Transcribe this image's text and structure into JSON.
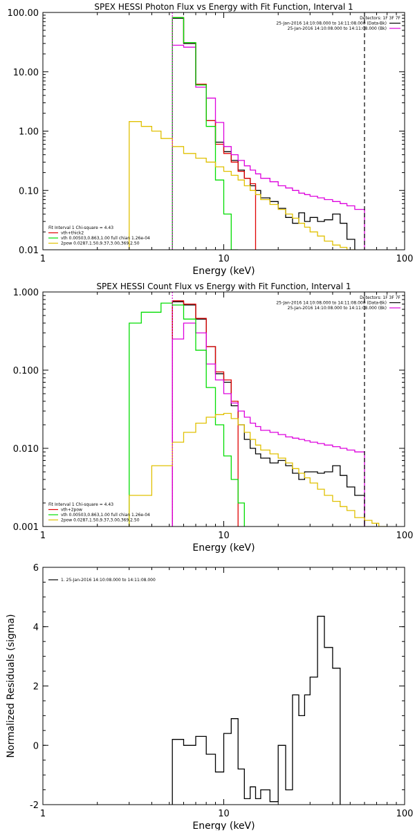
{
  "colors": {
    "black": "#000000",
    "red": "#e00000",
    "green": "#00dd00",
    "magenta": "#dd00dd",
    "yellow": "#e0c000",
    "axis": "#000000"
  },
  "chart_data": [
    {
      "type": "line",
      "title": "SPEX HESSI Photon Flux vs Energy with Fit Function, Interval 1",
      "xlabel": "Energy (keV)",
      "ylabel": "",
      "xscale": "log",
      "yscale": "log",
      "xlim": [
        1,
        100
      ],
      "ylim": [
        0.01,
        100
      ],
      "xticks": [
        {
          "value": 1,
          "label": "1"
        },
        {
          "value": 10,
          "label": "10"
        },
        {
          "value": 100,
          "label": "100"
        }
      ],
      "yticks": [
        {
          "value": 0.01,
          "label": "0.01"
        },
        {
          "value": 0.1,
          "label": "0.10"
        },
        {
          "value": 1,
          "label": "1.00"
        },
        {
          "value": 10,
          "label": "10.00"
        },
        {
          "value": 100,
          "label": "100.00"
        }
      ],
      "legend_topright": [
        {
          "text": "Detectors: 1F 3F 7F",
          "color": "",
          "line": false
        },
        {
          "text": "25-Jan-2016 14:10:08.000 to 14:11:08.000 (Data-Bk)",
          "color": "#000000",
          "line": true
        },
        {
          "text": "25-Jan-2016 14:10:08.000 to 14:11:08.000 (Bk)",
          "color": "#dd00dd",
          "line": true
        }
      ],
      "legend_bottomleft": [
        {
          "text": "Fit Interval  1   Chi-square = 4.43",
          "color": "",
          "line": false
        },
        {
          "text": "vth+thick2",
          "color": "#e00000",
          "line": true
        },
        {
          "text": "vth 0.00503,0.863,1.00  full chian 1.26e-04",
          "color": "#00dd00",
          "line": true
        },
        {
          "text": "2pow 0.0287,1.50,9.37,3.00,369,2.50",
          "color": "#e0c000",
          "line": true
        }
      ],
      "vlines": [
        {
          "x": 5.2,
          "color": "#dd00dd",
          "style": "dotted"
        },
        {
          "x": 60,
          "color": "#000000",
          "style": "dashed"
        }
      ],
      "edges": [
        3,
        3.5,
        4,
        4.5,
        5.2,
        6,
        7,
        8,
        9,
        10,
        11,
        12,
        13,
        14,
        15,
        16,
        18,
        20,
        22,
        24,
        26,
        28,
        30,
        33,
        36,
        40,
        44,
        48,
        53,
        60
      ],
      "series": [
        {
          "color": "#000000",
          "ymin": 0.01,
          "start": 4,
          "values": [
            80,
            30,
            6,
            1.5,
            0.65,
            0.45,
            0.32,
            0.22,
            0.16,
            0.12,
            0.1,
            0.075,
            0.065,
            0.05,
            0.035,
            0.028,
            0.042,
            0.03,
            0.035,
            0.03,
            0.032,
            0.04,
            0.028,
            0.015
          ]
        },
        {
          "color": "#e00000",
          "ymin": 0.01,
          "start": 4,
          "values": [
            82,
            31,
            6.2,
            1.5,
            0.6,
            0.42,
            0.3,
            0.21,
            0.16,
            0.13
          ]
        },
        {
          "color": "#dd00dd",
          "ymin": 0.01,
          "start": 4,
          "values": [
            28,
            26,
            5.5,
            3.6,
            1.4,
            0.55,
            0.4,
            0.32,
            0.26,
            0.22,
            0.19,
            0.16,
            0.14,
            0.12,
            0.11,
            0.1,
            0.09,
            0.085,
            0.08,
            0.075,
            0.07,
            0.065,
            0.06,
            0.055,
            0.048
          ]
        },
        {
          "color": "#00dd00",
          "ymin": 0.01,
          "start": 4,
          "values": [
            82,
            31,
            6,
            1.2,
            0.15,
            0.04,
            0.01
          ]
        },
        {
          "color": "#e0c000",
          "ymin": 0.01,
          "start": 0,
          "values": [
            1.45,
            1.2,
            1.0,
            0.75,
            0.55,
            0.42,
            0.35,
            0.3,
            0.25,
            0.21,
            0.18,
            0.15,
            0.12,
            0.1,
            0.085,
            0.07,
            0.058,
            0.048,
            0.04,
            0.034,
            0.028,
            0.024,
            0.02,
            0.017,
            0.014,
            0.012,
            0.011,
            0.01
          ]
        }
      ]
    },
    {
      "type": "line",
      "title": "SPEX HESSI Count Flux vs Energy with Fit Function, Interval 1",
      "xlabel": "Energy (keV)",
      "ylabel": "",
      "xscale": "log",
      "yscale": "log",
      "xlim": [
        1,
        100
      ],
      "ylim": [
        0.001,
        1
      ],
      "xticks": [
        {
          "value": 1,
          "label": "1"
        },
        {
          "value": 10,
          "label": "10"
        },
        {
          "value": 100,
          "label": "100"
        }
      ],
      "yticks": [
        {
          "value": 0.001,
          "label": "0.001"
        },
        {
          "value": 0.01,
          "label": "0.010"
        },
        {
          "value": 0.1,
          "label": "0.100"
        },
        {
          "value": 1,
          "label": "1.000"
        }
      ],
      "legend_topright": [
        {
          "text": "Detectors: 1F 3F 7F",
          "color": "",
          "line": false
        },
        {
          "text": "25-Jan-2016 14:10:08.000 to 14:11:08.000 (Data-Bk)",
          "color": "#000000",
          "line": true
        },
        {
          "text": "25-Jan-2016 14:10:08.000 to 14:11:08.000 (Bk)",
          "color": "#dd00dd",
          "line": true
        }
      ],
      "legend_bottomleft": [
        {
          "text": "Fit Interval  1   Chi-square = 4.43",
          "color": "",
          "line": false
        },
        {
          "text": "vth+2pow",
          "color": "#e00000",
          "line": true
        },
        {
          "text": "vth 0.00503,0.863,1.00  full chian 1.26e-04",
          "color": "#00dd00",
          "line": true
        },
        {
          "text": "2pow 0.0287,1.50,9.37,3.00,369,2.50",
          "color": "#e0c000",
          "line": true
        }
      ],
      "vlines": [
        {
          "x": 5.2,
          "color": "#dd00dd",
          "style": "dotted"
        },
        {
          "x": 60,
          "color": "#000000",
          "style": "dashed"
        }
      ],
      "edges": [
        3,
        3.5,
        4,
        4.5,
        5.2,
        6,
        7,
        8,
        9,
        10,
        11,
        12,
        13,
        14,
        15,
        16,
        18,
        20,
        22,
        24,
        26,
        28,
        30,
        33,
        36,
        40,
        44,
        48,
        53,
        60,
        66,
        72,
        80
      ],
      "series": [
        {
          "color": "#000000",
          "ymin": 0.001,
          "start": 4,
          "values": [
            0.75,
            0.68,
            0.45,
            0.2,
            0.09,
            0.07,
            0.035,
            0.02,
            0.013,
            0.01,
            0.0085,
            0.0075,
            0.0065,
            0.007,
            0.006,
            0.0048,
            0.004,
            0.005,
            0.005,
            0.0048,
            0.005,
            0.006,
            0.0045,
            0.0032,
            0.0025
          ]
        },
        {
          "color": "#e00000",
          "ymin": 0.001,
          "start": 4,
          "values": [
            0.77,
            0.7,
            0.46,
            0.2,
            0.095,
            0.075,
            0.04
          ]
        },
        {
          "color": "#dd00dd",
          "ymin": 0.001,
          "start": 4,
          "values": [
            0.25,
            0.4,
            0.3,
            0.12,
            0.075,
            0.05,
            0.038,
            0.03,
            0.025,
            0.021,
            0.019,
            0.017,
            0.016,
            0.015,
            0.014,
            0.0135,
            0.013,
            0.0125,
            0.012,
            0.0115,
            0.011,
            0.0105,
            0.01,
            0.0095,
            0.009
          ]
        },
        {
          "color": "#00dd00",
          "ymin": 0.001,
          "start": 0,
          "values": [
            0.4,
            0.55,
            0.55,
            0.72,
            0.68,
            0.45,
            0.18,
            0.06,
            0.02,
            0.008,
            0.004,
            0.002
          ]
        },
        {
          "color": "#e0c000",
          "ymin": 0.001,
          "start": 0,
          "values": [
            0.0025,
            0.0025,
            0.006,
            0.006,
            0.012,
            0.016,
            0.021,
            0.025,
            0.027,
            0.028,
            0.024,
            0.02,
            0.016,
            0.013,
            0.011,
            0.0095,
            0.0085,
            0.0075,
            0.0065,
            0.0055,
            0.0048,
            0.0042,
            0.0036,
            0.003,
            0.0025,
            0.0021,
            0.0018,
            0.0016,
            0.0013,
            0.0012,
            0.0011,
            0.001
          ]
        }
      ]
    },
    {
      "type": "line",
      "title": "",
      "xlabel": "Energy (keV)",
      "ylabel": "Normalized Residuals (sigma)",
      "xscale": "log",
      "yscale": "linear",
      "xlim": [
        1,
        100
      ],
      "ylim": [
        -2,
        6
      ],
      "xticks": [
        {
          "value": 1,
          "label": "1"
        },
        {
          "value": 10,
          "label": "10"
        },
        {
          "value": 100,
          "label": "100"
        }
      ],
      "yticks": [
        {
          "value": -2,
          "label": "-2"
        },
        {
          "value": 0,
          "label": "0"
        },
        {
          "value": 2,
          "label": "2"
        },
        {
          "value": 4,
          "label": "4"
        },
        {
          "value": 6,
          "label": "6"
        }
      ],
      "legend_topleft": [
        {
          "text": "1. 25-Jan-2016 14:10:08.000 to 14:11:08.000",
          "color": "#000000",
          "line": true
        }
      ],
      "legend_topright": [],
      "legend_bottomleft": [],
      "vlines": [],
      "edges": [
        5.2,
        6,
        7,
        8,
        9,
        10,
        11,
        12,
        13,
        14,
        15,
        16,
        18,
        20,
        22,
        24,
        26,
        28,
        30,
        33,
        36,
        40,
        44,
        48,
        53,
        60
      ],
      "series": [
        {
          "color": "#000000",
          "ymin": -2,
          "start": 0,
          "values": [
            0.2,
            0.0,
            0.3,
            -0.3,
            -0.9,
            0.4,
            0.9,
            -0.8,
            -1.8,
            -1.4,
            -1.8,
            -1.5,
            -1.9,
            0.0,
            -1.5,
            1.7,
            1.0,
            1.7,
            2.3,
            4.35,
            3.3,
            2.6
          ]
        }
      ]
    }
  ]
}
